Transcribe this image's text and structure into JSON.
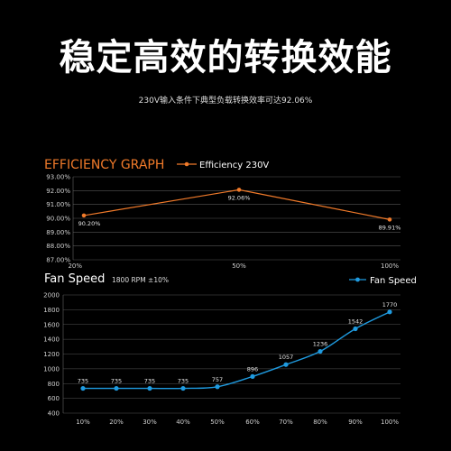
{
  "header": {
    "title": "稳定高效的转换效能",
    "subtitle": "230V输入条件下典型负载转换效率可达92.06%"
  },
  "chart_data": [
    {
      "type": "line",
      "title": "EFFICIENCY GRAPH",
      "series": [
        {
          "name": "Efficiency 230V",
          "color": "#f07a2a",
          "x": [
            "20%",
            "50%",
            "100%"
          ],
          "values": [
            90.2,
            92.06,
            89.91
          ],
          "data_labels": [
            "90.20%",
            "92.06%",
            "89.91%"
          ]
        }
      ],
      "y_ticks": [
        "87.00%",
        "88.00%",
        "89.00%",
        "90.00%",
        "91.00%",
        "92.00%",
        "93.00%"
      ],
      "x_ticks": [
        "20%",
        "50%",
        "100%"
      ],
      "ylim": [
        87,
        93
      ],
      "grid": true,
      "legend_position": "top-center"
    },
    {
      "type": "line",
      "title": "Fan Speed",
      "subtitle": "1800 RPM ±10%",
      "series": [
        {
          "name": "Fan Speed",
          "color": "#1f9be0",
          "x": [
            "10%",
            "20%",
            "30%",
            "40%",
            "50%",
            "60%",
            "70%",
            "80%",
            "90%",
            "100%"
          ],
          "values": [
            735,
            735,
            735,
            735,
            757,
            896,
            1057,
            1236,
            1542,
            1770
          ],
          "data_labels": [
            "735",
            "735",
            "735",
            "735",
            "757",
            "896",
            "1057",
            "1236",
            "1542",
            "1770"
          ]
        }
      ],
      "y_ticks": [
        "400",
        "600",
        "800",
        "1000",
        "1200",
        "1400",
        "1600",
        "1800",
        "2000"
      ],
      "x_ticks": [
        "10%",
        "20%",
        "30%",
        "40%",
        "50%",
        "60%",
        "70%",
        "80%",
        "90%",
        "100%"
      ],
      "ylim": [
        400,
        2000
      ],
      "grid": true,
      "legend_position": "top-right"
    }
  ]
}
